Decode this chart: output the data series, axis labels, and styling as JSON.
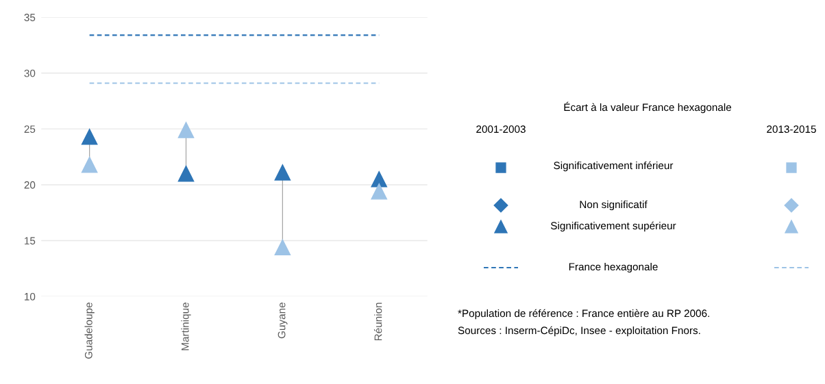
{
  "chart_data": {
    "type": "scatter",
    "categories": [
      "Guadeloupe",
      "Martinique",
      "Guyane",
      "Réunion"
    ],
    "series": [
      {
        "name": "2001-2003",
        "color": "#2e75b6",
        "marker": "triangle",
        "values": [
          24.3,
          21.0,
          21.1,
          20.5
        ]
      },
      {
        "name": "2013-2015",
        "color": "#9dc3e6",
        "marker": "triangle",
        "values": [
          21.8,
          24.9,
          14.4,
          19.4
        ]
      }
    ],
    "ylim": [
      10,
      35
    ],
    "yticks": [
      10,
      15,
      20,
      25,
      30,
      35
    ],
    "grid": "y",
    "legend": "right",
    "legend_title": "Écart à la valeur France hexagonale",
    "ref_lines": [
      {
        "axis": "y",
        "value": 33.4,
        "color": "#2e75b6",
        "line_style": "dashed"
      },
      {
        "axis": "y",
        "value": 29.1,
        "color": "#9dc3e6",
        "line_style": "dashed"
      }
    ],
    "annotations": [
      "Significativement inférieur",
      "Non significatif",
      "Significativement supérieur",
      "France hexagonale",
      "*Population de référence : France entière au RP 2006.",
      "Sources : Inserm-CépiDc, Insee - exploitation Fnors."
    ]
  }
}
